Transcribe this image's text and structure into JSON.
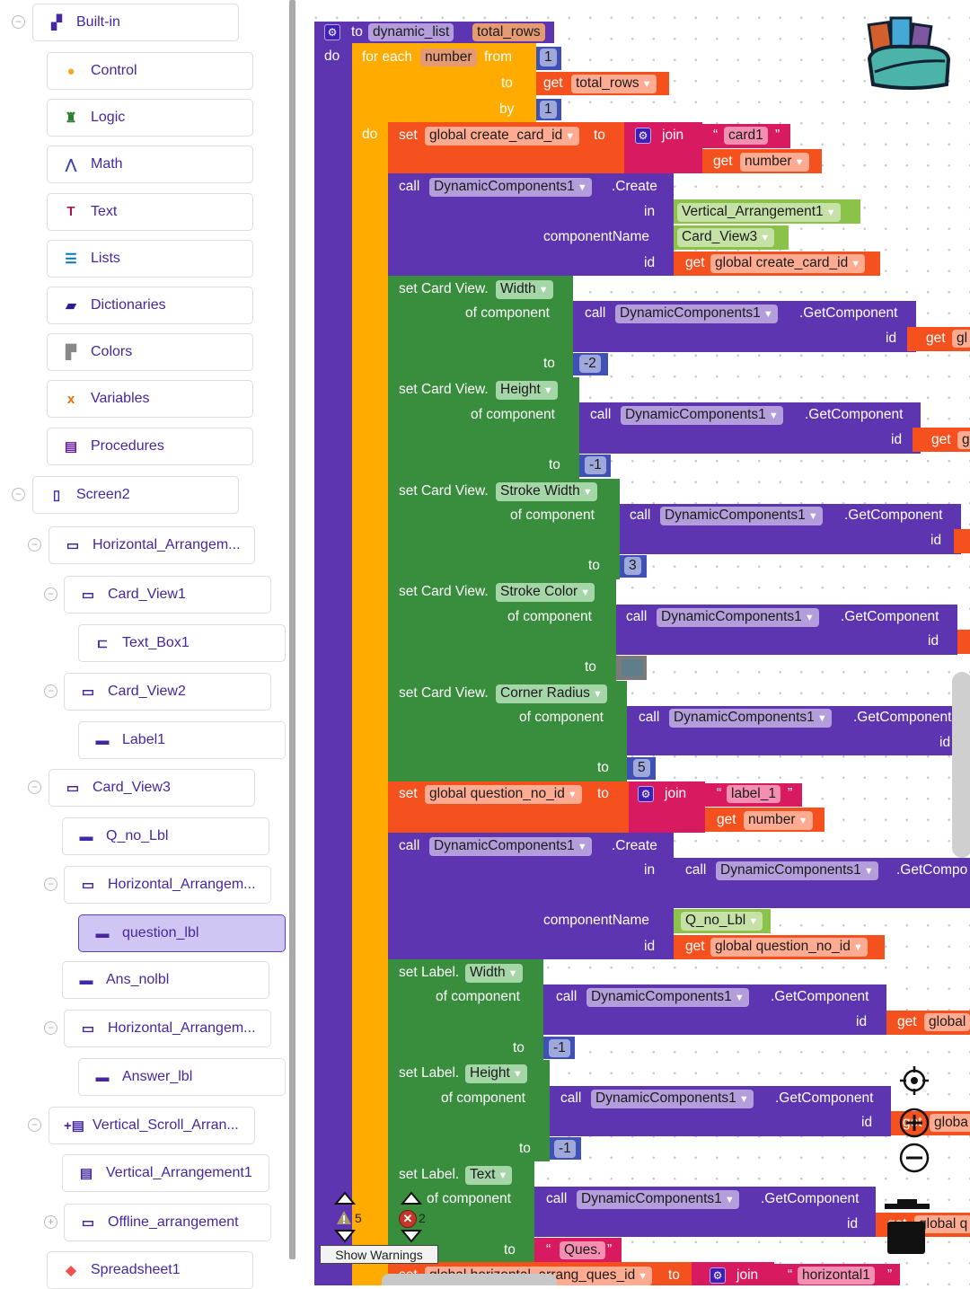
{
  "sidebar": {
    "builtin": "Built-in",
    "categories": [
      "Control",
      "Logic",
      "Math",
      "Text",
      "Lists",
      "Dictionaries",
      "Colors",
      "Variables",
      "Procedures"
    ],
    "screen": "Screen2",
    "tree": [
      "Horizontal_Arrangem...",
      "Card_View1",
      "Text_Box1",
      "Card_View2",
      "Label1",
      "Card_View3",
      "Q_no_Lbl",
      "Horizontal_Arrangem...",
      "question_lbl",
      "Ans_nolbl",
      "Horizontal_Arrangem...",
      "Answer_lbl",
      "Vertical_Scroll_Arran...",
      "Vertical_Arrangement1",
      "Offline_arrangement",
      "Spreadsheet1"
    ],
    "selected": "question_lbl"
  },
  "ws": {
    "to": "to",
    "proc_name": "dynamic_list",
    "param": "total_rows",
    "do": "do",
    "for_each": "for each",
    "loop_var": "number",
    "from": "from",
    "by": "by",
    "one": "1",
    "get": "get",
    "set": "set",
    "join": "join",
    "call": "call",
    "open_q": "“",
    "close_q": "”",
    "g_card_id": "global create_card_id",
    "g_qno_id": "global question_no_id",
    "g_horiz_id": "global horizontal_arrang_ques_id",
    "card1": "card1",
    "label_1": "label_1",
    "ques": "Ques.",
    "horizontal1": "horizontal1",
    "dc": "DynamicComponents1",
    "create": ".Create",
    "getcomp": ".GetComponent",
    "getcomp_clip": ".GetCompo",
    "in": "in",
    "component_name": "componentName",
    "id": "id",
    "vert_arr": "Vertical_Arrangement1",
    "card_view3": "Card_View3",
    "q_no_lbl": "Q_no_Lbl",
    "set_cardview": "set Card View.",
    "set_label": "set Label.",
    "of_component": "of component",
    "width": "Width",
    "height": "Height",
    "stroke_width": "Stroke Width",
    "stroke_color": "Stroke Color",
    "corner_radius": "Corner Radius",
    "text": "Text",
    "v_m2": "-2",
    "v_m1": "-1",
    "v_3": "3",
    "v_5": "5",
    "clip_gl": "gl",
    "clip_g": "g",
    "clip_global": "global",
    "clip_globa": "globa",
    "clip_global_q": "global q"
  },
  "warnings": {
    "warning_count": "5",
    "error_count": "2",
    "show_warnings": "Show Warnings"
  },
  "colors": {
    "procedure": "#5e35b1",
    "control": "#ffab00",
    "variables": "#f4511e",
    "text": "#d81b60",
    "component_set": "#388e3c",
    "component": "#8bc34a",
    "math": "#3f51b5",
    "stroke_color_value": "#607d8b"
  }
}
